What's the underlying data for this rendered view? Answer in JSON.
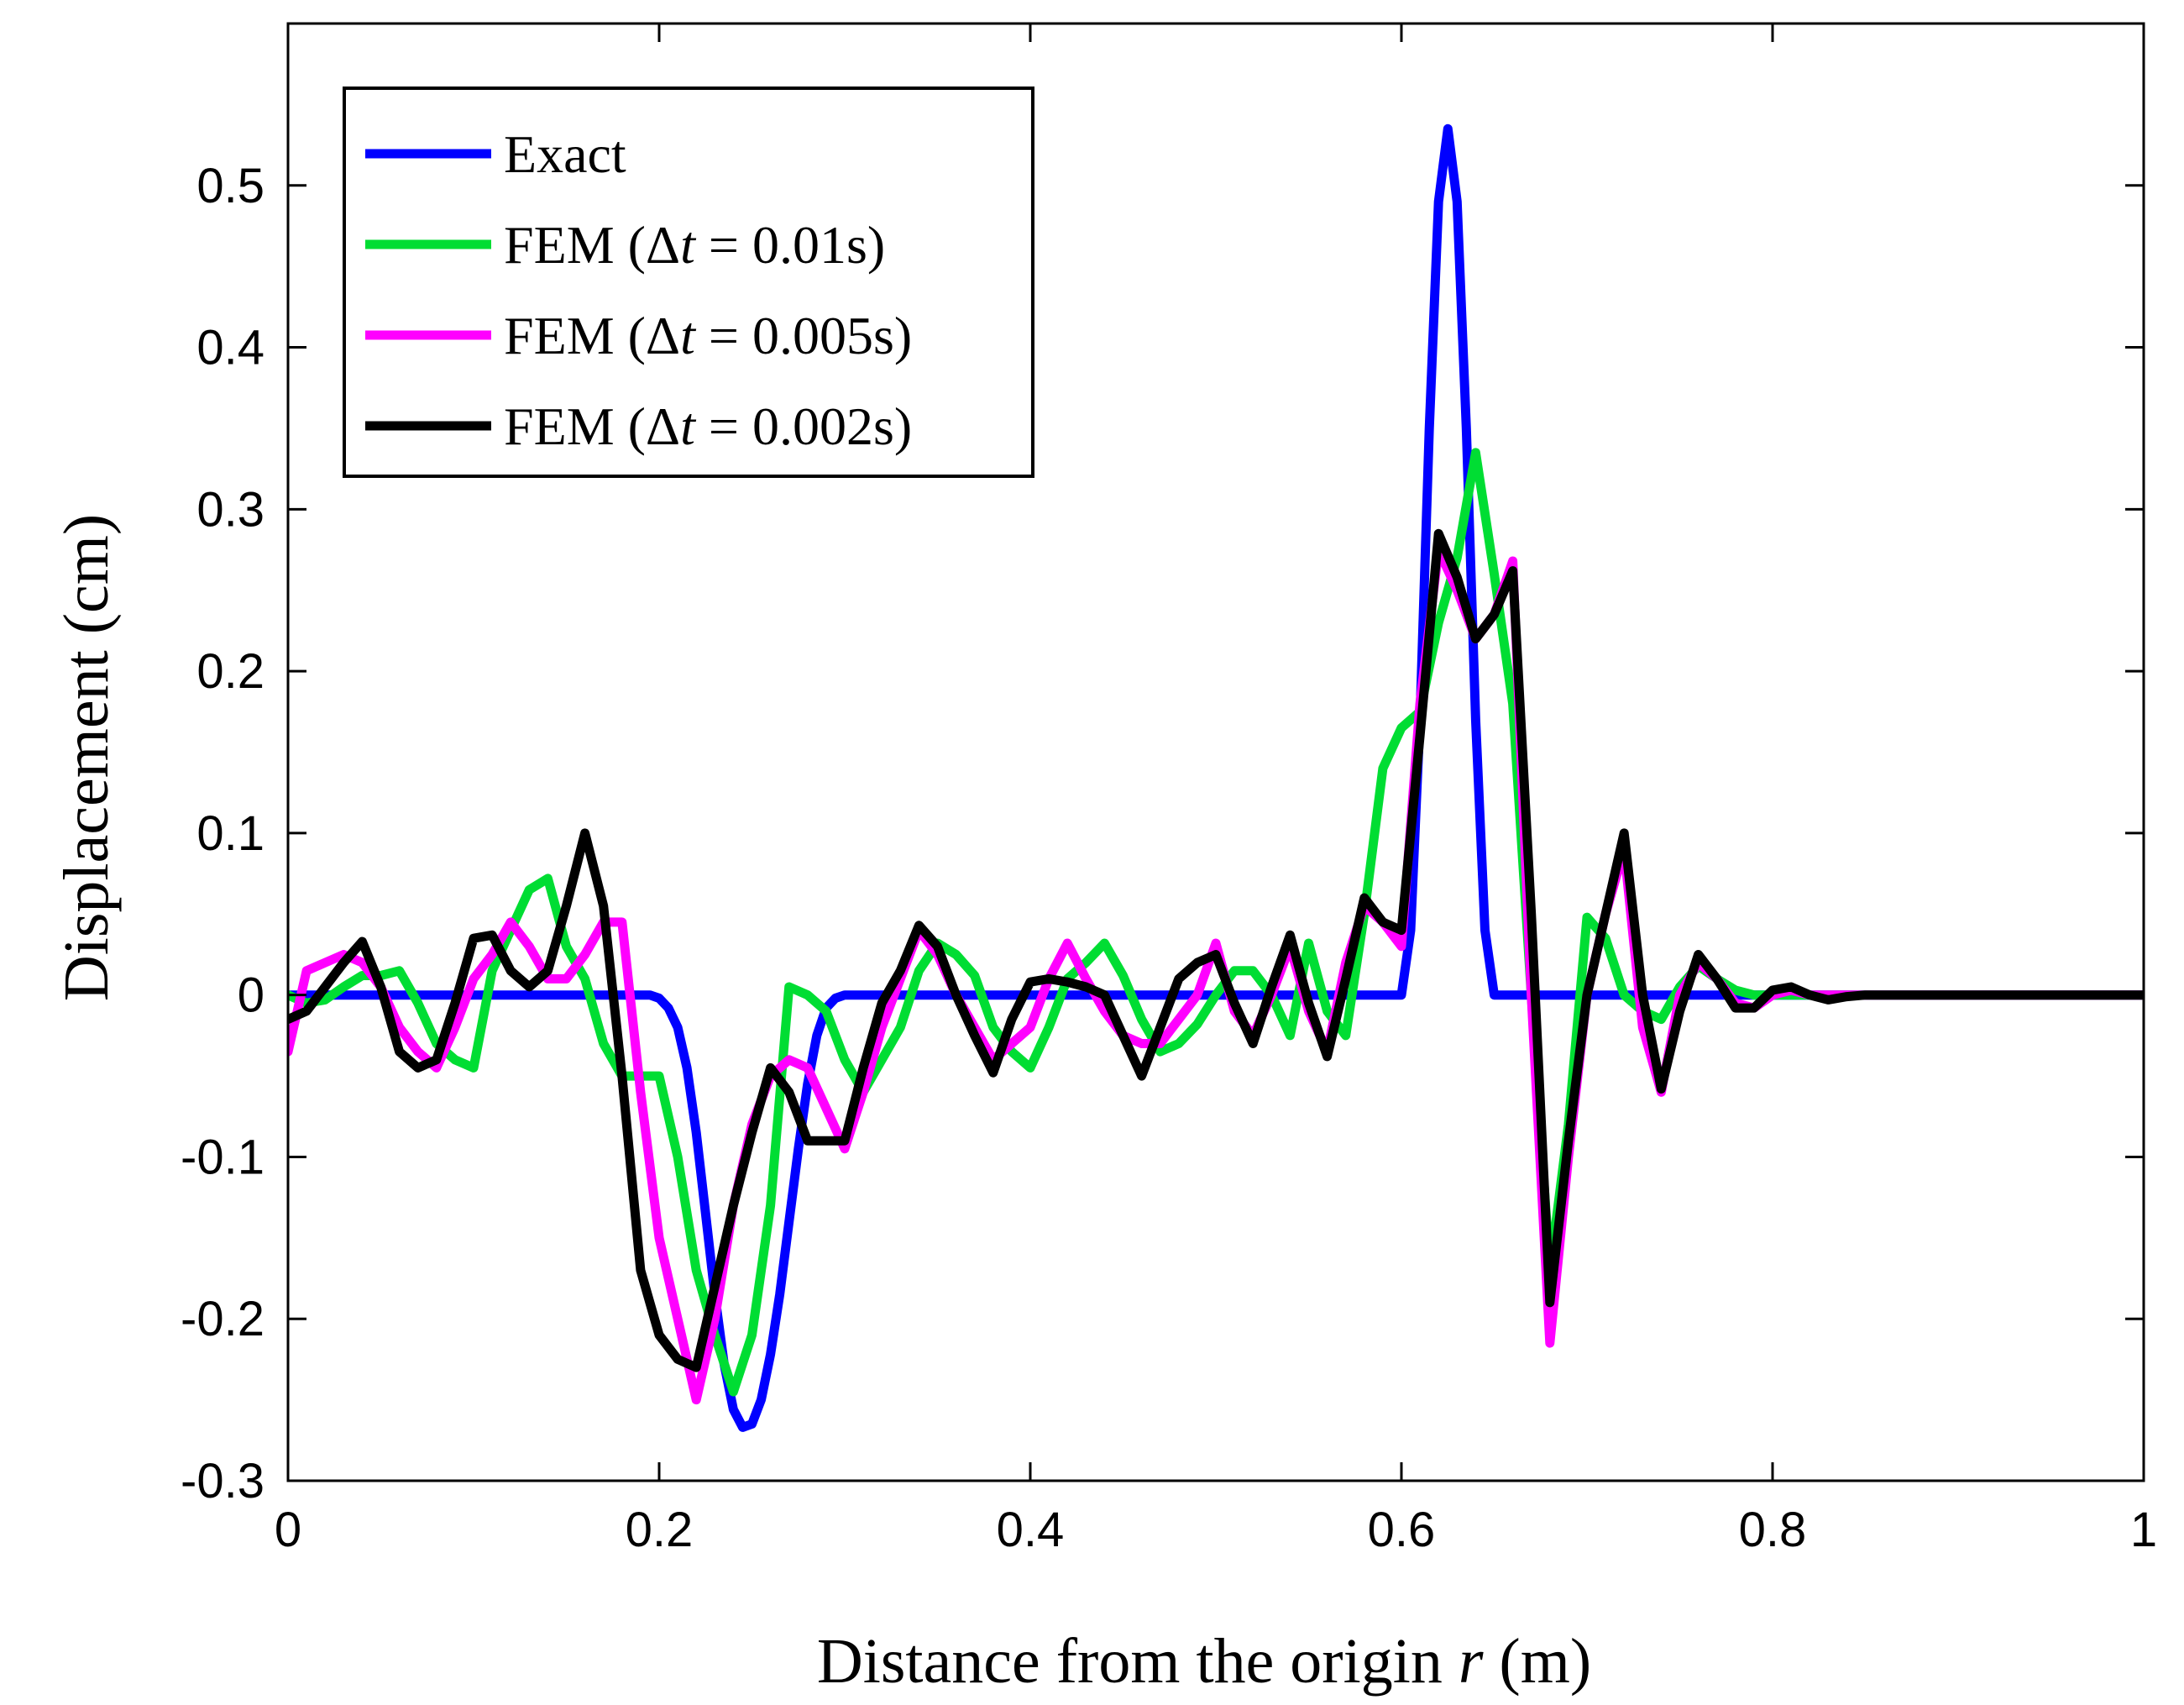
{
  "chart_data": {
    "type": "line",
    "title": "",
    "xlabel_parts": [
      "Distance from the origin ",
      "r",
      " (m)"
    ],
    "ylabel": "Displacement (cm)",
    "xlim": [
      0,
      1
    ],
    "ylim": [
      -0.3,
      0.6
    ],
    "xticks": [
      0,
      0.2,
      0.4,
      0.6,
      0.8,
      1
    ],
    "xtick_labels": [
      "0",
      "0.2",
      "0.4",
      "0.6",
      "0.8",
      "1"
    ],
    "yticks": [
      -0.3,
      -0.2,
      -0.1,
      0,
      0.1,
      0.2,
      0.3,
      0.4,
      0.5
    ],
    "ytick_labels": [
      "-0.3",
      "-0.2",
      "-0.1",
      "0",
      "0.1",
      "0.2",
      "0.3",
      "0.4",
      "0.5"
    ],
    "grid": false,
    "legend_position": "top-left",
    "legend": [
      {
        "prefix": "Exact",
        "delta": "",
        "var": "",
        "suffix": ""
      },
      {
        "prefix": "FEM (",
        "delta": "Δ",
        "var": "t",
        "suffix": " = 0.01s)"
      },
      {
        "prefix": "FEM (",
        "delta": "Δ",
        "var": "t",
        "suffix": " = 0.005s)"
      },
      {
        "prefix": "FEM (",
        "delta": "Δ",
        "var": "t",
        "suffix": " = 0.002s)"
      }
    ],
    "series": [
      {
        "name": "Exact",
        "color": "#0000ff",
        "x": [
          0,
          0.195,
          0.2,
          0.205,
          0.21,
          0.215,
          0.22,
          0.225,
          0.23,
          0.235,
          0.24,
          0.245,
          0.25,
          0.255,
          0.26,
          0.265,
          0.27,
          0.275,
          0.28,
          0.285,
          0.29,
          0.295,
          0.3,
          0.6,
          0.605,
          0.61,
          0.615,
          0.62,
          0.625,
          0.63,
          0.635,
          0.64,
          0.645,
          0.65,
          1
        ],
        "y": [
          0,
          0,
          -0.002,
          -0.008,
          -0.02,
          -0.045,
          -0.085,
          -0.135,
          -0.185,
          -0.228,
          -0.256,
          -0.267,
          -0.265,
          -0.25,
          -0.222,
          -0.185,
          -0.14,
          -0.095,
          -0.055,
          -0.025,
          -0.008,
          -0.002,
          0,
          0,
          0.04,
          0.17,
          0.35,
          0.49,
          0.535,
          0.49,
          0.35,
          0.17,
          0.04,
          0,
          0
        ]
      },
      {
        "name": "FEM (Δt = 0.01s)",
        "color": "#00dd33",
        "x": [
          0,
          0.01,
          0.02,
          0.03,
          0.04,
          0.05,
          0.06,
          0.07,
          0.08,
          0.09,
          0.1,
          0.11,
          0.12,
          0.13,
          0.14,
          0.15,
          0.16,
          0.17,
          0.18,
          0.19,
          0.2,
          0.21,
          0.22,
          0.23,
          0.24,
          0.25,
          0.26,
          0.27,
          0.28,
          0.29,
          0.3,
          0.31,
          0.32,
          0.33,
          0.34,
          0.35,
          0.36,
          0.37,
          0.38,
          0.39,
          0.4,
          0.41,
          0.42,
          0.43,
          0.44,
          0.45,
          0.46,
          0.47,
          0.48,
          0.49,
          0.5,
          0.51,
          0.52,
          0.53,
          0.54,
          0.55,
          0.56,
          0.57,
          0.58,
          0.59,
          0.6,
          0.61,
          0.62,
          0.63,
          0.64,
          0.65,
          0.66,
          0.67,
          0.68,
          0.69,
          0.7,
          0.71,
          0.72,
          0.73,
          0.74,
          0.75,
          0.76,
          0.77,
          0.78,
          0.79,
          0.8,
          0.85,
          0.9,
          1
        ],
        "y": [
          0,
          -0.005,
          -0.003,
          0.005,
          0.012,
          0.012,
          0.015,
          -0.005,
          -0.03,
          -0.04,
          -0.045,
          0.015,
          0.04,
          0.065,
          0.072,
          0.03,
          0.01,
          -0.03,
          -0.05,
          -0.05,
          -0.05,
          -0.1,
          -0.17,
          -0.21,
          -0.245,
          -0.21,
          -0.13,
          0.005,
          0.0,
          -0.01,
          -0.04,
          -0.06,
          -0.04,
          -0.02,
          0.015,
          0.032,
          0.025,
          0.012,
          -0.02,
          -0.035,
          -0.045,
          -0.02,
          0.01,
          0.02,
          0.032,
          0.012,
          -0.015,
          -0.035,
          -0.03,
          -0.018,
          0.0,
          0.015,
          0.015,
          0.0,
          -0.025,
          0.032,
          -0.01,
          -0.025,
          0.05,
          0.14,
          0.165,
          0.175,
          0.23,
          0.27,
          0.335,
          0.26,
          0.18,
          0.0,
          -0.17,
          -0.08,
          0.048,
          0.035,
          0.0,
          -0.01,
          -0.015,
          0.005,
          0.018,
          0.01,
          0.003,
          0.0,
          0.0,
          0,
          0,
          0
        ]
      },
      {
        "name": "FEM (Δt = 0.005s)",
        "color": "#ff00ff",
        "x": [
          0,
          0.01,
          0.02,
          0.03,
          0.04,
          0.05,
          0.06,
          0.07,
          0.08,
          0.09,
          0.1,
          0.11,
          0.12,
          0.13,
          0.14,
          0.15,
          0.16,
          0.17,
          0.18,
          0.19,
          0.2,
          0.21,
          0.22,
          0.23,
          0.24,
          0.25,
          0.26,
          0.27,
          0.28,
          0.29,
          0.3,
          0.31,
          0.32,
          0.33,
          0.34,
          0.35,
          0.36,
          0.37,
          0.38,
          0.39,
          0.4,
          0.41,
          0.42,
          0.43,
          0.44,
          0.45,
          0.46,
          0.47,
          0.48,
          0.49,
          0.5,
          0.51,
          0.52,
          0.53,
          0.54,
          0.55,
          0.56,
          0.57,
          0.58,
          0.59,
          0.6,
          0.61,
          0.62,
          0.63,
          0.64,
          0.65,
          0.66,
          0.67,
          0.68,
          0.69,
          0.7,
          0.71,
          0.72,
          0.73,
          0.74,
          0.75,
          0.76,
          0.77,
          0.78,
          0.79,
          0.8,
          0.81,
          0.82,
          0.85,
          0.9,
          1
        ],
        "y": [
          -0.035,
          0.015,
          0.02,
          0.025,
          0.02,
          0.005,
          -0.02,
          -0.035,
          -0.045,
          -0.02,
          0.01,
          0.025,
          0.045,
          0.03,
          0.01,
          0.01,
          0.025,
          0.045,
          0.045,
          -0.06,
          -0.15,
          -0.2,
          -0.25,
          -0.2,
          -0.13,
          -0.08,
          -0.05,
          -0.04,
          -0.045,
          -0.07,
          -0.095,
          -0.06,
          -0.02,
          0.01,
          0.04,
          0.025,
          0.0,
          -0.02,
          -0.04,
          -0.03,
          -0.02,
          0.01,
          0.032,
          0.01,
          -0.01,
          -0.025,
          -0.03,
          -0.03,
          -0.015,
          0.0,
          0.032,
          -0.01,
          -0.025,
          0.0,
          0.03,
          -0.01,
          -0.035,
          0.02,
          0.055,
          0.045,
          0.03,
          0.18,
          0.275,
          0.25,
          0.22,
          0.235,
          0.268,
          0.0,
          -0.215,
          -0.1,
          0.0,
          0.05,
          0.09,
          -0.02,
          -0.06,
          0.0,
          0.02,
          0.01,
          -0.005,
          -0.008,
          0.0,
          0.003,
          0.0,
          0,
          0,
          0
        ]
      },
      {
        "name": "FEM (Δt = 0.002s)",
        "color": "#000000",
        "x": [
          0,
          0.01,
          0.02,
          0.03,
          0.04,
          0.05,
          0.06,
          0.07,
          0.08,
          0.09,
          0.1,
          0.11,
          0.12,
          0.13,
          0.14,
          0.15,
          0.16,
          0.17,
          0.18,
          0.19,
          0.2,
          0.21,
          0.22,
          0.23,
          0.24,
          0.25,
          0.26,
          0.27,
          0.28,
          0.29,
          0.3,
          0.31,
          0.32,
          0.33,
          0.34,
          0.35,
          0.36,
          0.37,
          0.38,
          0.39,
          0.4,
          0.41,
          0.42,
          0.43,
          0.44,
          0.45,
          0.46,
          0.47,
          0.48,
          0.49,
          0.5,
          0.51,
          0.52,
          0.53,
          0.54,
          0.55,
          0.56,
          0.57,
          0.58,
          0.59,
          0.6,
          0.61,
          0.62,
          0.63,
          0.64,
          0.65,
          0.66,
          0.67,
          0.68,
          0.69,
          0.7,
          0.71,
          0.72,
          0.73,
          0.74,
          0.75,
          0.76,
          0.77,
          0.78,
          0.79,
          0.8,
          0.81,
          0.82,
          0.83,
          0.84,
          0.85,
          0.9,
          1
        ],
        "y": [
          -0.015,
          -0.01,
          0.005,
          0.02,
          0.033,
          0.005,
          -0.035,
          -0.045,
          -0.04,
          -0.005,
          0.035,
          0.037,
          0.015,
          0.005,
          0.015,
          0.055,
          0.1,
          0.055,
          -0.05,
          -0.17,
          -0.21,
          -0.225,
          -0.23,
          -0.18,
          -0.13,
          -0.085,
          -0.045,
          -0.06,
          -0.09,
          -0.09,
          -0.09,
          -0.045,
          -0.005,
          0.015,
          0.043,
          0.03,
          0.0,
          -0.025,
          -0.048,
          -0.015,
          0.008,
          0.01,
          0.008,
          0.005,
          0.0,
          -0.025,
          -0.05,
          -0.02,
          0.01,
          0.02,
          0.025,
          -0.005,
          -0.03,
          0.005,
          0.037,
          -0.005,
          -0.038,
          0.01,
          0.06,
          0.045,
          0.04,
          0.16,
          0.285,
          0.258,
          0.22,
          0.235,
          0.262,
          0.05,
          -0.19,
          -0.09,
          0.0,
          0.05,
          0.1,
          0.0,
          -0.058,
          -0.01,
          0.025,
          0.01,
          -0.008,
          -0.008,
          0.003,
          0.005,
          0.0,
          -0.003,
          -0.001,
          0.0,
          0,
          0
        ]
      }
    ]
  }
}
